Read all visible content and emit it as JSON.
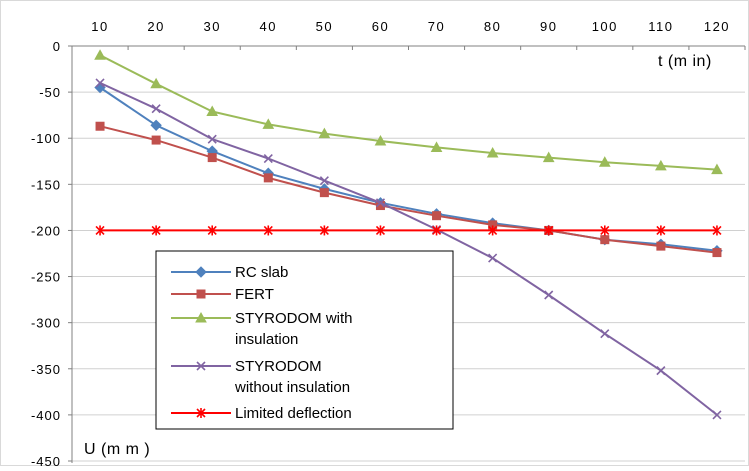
{
  "chart_data": {
    "type": "line",
    "xlabel": "t (m in)",
    "ylabel": "U (m m )",
    "x": [
      10,
      20,
      30,
      40,
      50,
      60,
      70,
      80,
      90,
      100,
      110,
      120
    ],
    "xlim": [
      5,
      125
    ],
    "ylim": [
      -450,
      0
    ],
    "x_ticks": [
      10,
      20,
      30,
      40,
      50,
      60,
      70,
      80,
      90,
      100,
      110,
      120
    ],
    "y_ticks": [
      0,
      -50,
      -100,
      -150,
      -200,
      -250,
      -300,
      -350,
      -400,
      -450
    ],
    "x_axis_position": "top",
    "grid": "horizontal",
    "legend_position": "bottom-left",
    "series": [
      {
        "name": "RC slab",
        "color": "#4f81bd",
        "marker": "diamond",
        "values": [
          -45,
          -86,
          -114,
          -138,
          -155,
          -170,
          -182,
          -192,
          -200,
          -210,
          -215,
          -222
        ]
      },
      {
        "name": "FERT",
        "color": "#c0504d",
        "marker": "square",
        "values": [
          -87,
          -102,
          -121,
          -143,
          -159,
          -173,
          -184,
          -194,
          -200,
          -210,
          -217,
          -224
        ]
      },
      {
        "name": "STYRODOM with insulation",
        "color": "#9bbb59",
        "marker": "triangle",
        "values": [
          -10,
          -41,
          -71,
          -85,
          -95,
          -103,
          -110,
          -116,
          -121,
          -126,
          -130,
          -134
        ]
      },
      {
        "name": "STYRODOM without insulation",
        "color": "#8064a2",
        "marker": "x",
        "values": [
          -40,
          -68,
          -101,
          -122,
          -146,
          -170,
          -199,
          -230,
          -270,
          -312,
          -352,
          -400
        ]
      },
      {
        "name": "Limited deflection",
        "color": "#ff0000",
        "marker": "star",
        "values": [
          -200,
          -200,
          -200,
          -200,
          -200,
          -200,
          -200,
          -200,
          -200,
          -200,
          -200,
          -200
        ]
      }
    ],
    "legend_labels": [
      [
        "RC slab"
      ],
      [
        "FERT"
      ],
      [
        "STYRODOM with",
        "insulation"
      ],
      [
        "STYRODOM",
        "without insulation"
      ],
      [
        "Limited deflection"
      ]
    ]
  }
}
